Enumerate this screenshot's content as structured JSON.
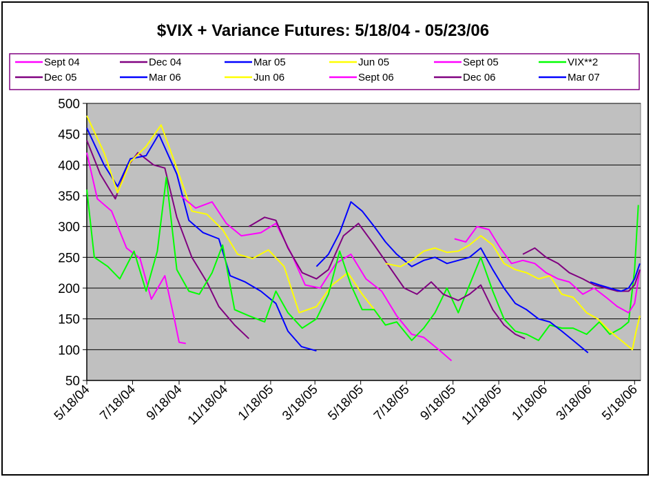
{
  "chart_data": {
    "type": "line",
    "title": "$VIX + Variance Futures: 5/18/04 - 05/23/06",
    "xlabel": "",
    "ylabel": "",
    "x_range": [
      "2004-05-18",
      "2006-05-26"
    ],
    "x_tick_labels": [
      "5/18/04",
      "7/18/04",
      "9/18/04",
      "11/18/04",
      "1/18/05",
      "3/18/05",
      "5/18/05",
      "7/18/05",
      "9/18/05",
      "11/18/05",
      "1/18/06",
      "3/18/06",
      "5/18/06"
    ],
    "x_tick_dates": [
      "2004-05-18",
      "2004-07-18",
      "2004-09-18",
      "2004-11-18",
      "2005-01-18",
      "2005-03-18",
      "2005-05-18",
      "2005-07-18",
      "2005-09-18",
      "2005-11-18",
      "2006-01-18",
      "2006-03-18",
      "2006-05-18"
    ],
    "ylim": [
      50,
      500
    ],
    "y_ticks": [
      50,
      100,
      150,
      200,
      250,
      300,
      350,
      400,
      450,
      500
    ],
    "grid": "horizontal",
    "plot_background": "#c0c0c0",
    "legend_position": "top",
    "series": [
      {
        "name": "Sept 04",
        "color": "#ff00ff",
        "points": [
          [
            "2004-05-18",
            420
          ],
          [
            "2004-06-01",
            345
          ],
          [
            "2004-06-20",
            325
          ],
          [
            "2004-07-10",
            265
          ],
          [
            "2004-07-28",
            248
          ],
          [
            "2004-08-12",
            182
          ],
          [
            "2004-08-30",
            220
          ],
          [
            "2004-09-12",
            148
          ],
          [
            "2004-09-18",
            112
          ],
          [
            "2004-09-27",
            110
          ]
        ]
      },
      {
        "name": "Dec 04",
        "color": "#800080",
        "points": [
          [
            "2004-05-18",
            440
          ],
          [
            "2004-06-05",
            385
          ],
          [
            "2004-06-25",
            345
          ],
          [
            "2004-07-10",
            395
          ],
          [
            "2004-07-25",
            420
          ],
          [
            "2004-08-15",
            400
          ],
          [
            "2004-08-30",
            395
          ],
          [
            "2004-09-15",
            315
          ],
          [
            "2004-10-05",
            250
          ],
          [
            "2004-10-25",
            210
          ],
          [
            "2004-11-10",
            170
          ],
          [
            "2004-12-01",
            140
          ],
          [
            "2004-12-20",
            118
          ]
        ]
      },
      {
        "name": "Mar 05",
        "color": "#0000ff",
        "points": [
          [
            "2004-05-18",
            460
          ],
          [
            "2004-06-10",
            400
          ],
          [
            "2004-06-28",
            365
          ],
          [
            "2004-07-15",
            410
          ],
          [
            "2004-08-05",
            415
          ],
          [
            "2004-08-22",
            450
          ],
          [
            "2004-09-15",
            385
          ],
          [
            "2004-10-01",
            310
          ],
          [
            "2004-10-20",
            290
          ],
          [
            "2004-11-10",
            280
          ],
          [
            "2004-11-25",
            220
          ],
          [
            "2004-12-15",
            210
          ],
          [
            "2005-01-05",
            195
          ],
          [
            "2005-01-25",
            175
          ],
          [
            "2005-02-10",
            130
          ],
          [
            "2005-02-28",
            105
          ],
          [
            "2005-03-20",
            98
          ]
        ]
      },
      {
        "name": "Jun 05",
        "color": "#ffff00",
        "points": [
          [
            "2004-05-18",
            480
          ],
          [
            "2004-06-10",
            420
          ],
          [
            "2004-06-28",
            355
          ],
          [
            "2004-07-15",
            405
          ],
          [
            "2004-08-05",
            430
          ],
          [
            "2004-08-25",
            465
          ],
          [
            "2004-09-15",
            395
          ],
          [
            "2004-10-05",
            325
          ],
          [
            "2004-10-25",
            320
          ],
          [
            "2004-11-15",
            295
          ],
          [
            "2004-12-05",
            255
          ],
          [
            "2004-12-25",
            248
          ],
          [
            "2005-01-15",
            262
          ],
          [
            "2005-02-05",
            235
          ],
          [
            "2005-02-25",
            160
          ],
          [
            "2005-03-20",
            170
          ],
          [
            "2005-04-10",
            205
          ],
          [
            "2005-05-01",
            225
          ],
          [
            "2005-05-20",
            190
          ],
          [
            "2005-06-05",
            165
          ],
          [
            "2005-06-17",
            145
          ]
        ]
      },
      {
        "name": "Sept 05",
        "color": "#ff00ff",
        "points": [
          [
            "2004-09-20",
            350
          ],
          [
            "2004-10-10",
            330
          ],
          [
            "2004-11-01",
            340
          ],
          [
            "2004-11-20",
            305
          ],
          [
            "2004-12-10",
            285
          ],
          [
            "2005-01-05",
            290
          ],
          [
            "2005-01-25",
            305
          ],
          [
            "2005-02-15",
            255
          ],
          [
            "2005-03-05",
            205
          ],
          [
            "2005-03-25",
            200
          ],
          [
            "2005-04-15",
            240
          ],
          [
            "2005-05-05",
            255
          ],
          [
            "2005-05-25",
            215
          ],
          [
            "2005-06-15",
            195
          ],
          [
            "2005-07-05",
            155
          ],
          [
            "2005-07-25",
            125
          ],
          [
            "2005-08-10",
            120
          ],
          [
            "2005-08-30",
            100
          ],
          [
            "2005-09-16",
            82
          ]
        ]
      },
      {
        "name": "VIX**2",
        "color": "#00ff00",
        "points": [
          [
            "2004-05-18",
            360
          ],
          [
            "2004-05-28",
            250
          ],
          [
            "2004-06-15",
            235
          ],
          [
            "2004-07-01",
            215
          ],
          [
            "2004-07-20",
            260
          ],
          [
            "2004-08-05",
            195
          ],
          [
            "2004-08-20",
            260
          ],
          [
            "2004-09-01",
            380
          ],
          [
            "2004-09-15",
            230
          ],
          [
            "2004-10-01",
            195
          ],
          [
            "2004-10-15",
            190
          ],
          [
            "2004-11-01",
            225
          ],
          [
            "2004-11-15",
            270
          ],
          [
            "2004-12-01",
            165
          ],
          [
            "2004-12-20",
            155
          ],
          [
            "2005-01-10",
            145
          ],
          [
            "2005-01-25",
            195
          ],
          [
            "2005-02-10",
            160
          ],
          [
            "2005-03-01",
            135
          ],
          [
            "2005-03-20",
            150
          ],
          [
            "2005-04-05",
            190
          ],
          [
            "2005-04-20",
            260
          ],
          [
            "2005-05-05",
            205
          ],
          [
            "2005-05-20",
            165
          ],
          [
            "2005-06-05",
            165
          ],
          [
            "2005-06-20",
            140
          ],
          [
            "2005-07-05",
            145
          ],
          [
            "2005-07-25",
            115
          ],
          [
            "2005-08-10",
            135
          ],
          [
            "2005-08-25",
            160
          ],
          [
            "2005-09-10",
            200
          ],
          [
            "2005-09-25",
            160
          ],
          [
            "2005-10-10",
            205
          ],
          [
            "2005-10-25",
            250
          ],
          [
            "2005-11-10",
            195
          ],
          [
            "2005-11-25",
            150
          ],
          [
            "2005-12-10",
            130
          ],
          [
            "2005-12-25",
            125
          ],
          [
            "2006-01-10",
            115
          ],
          [
            "2006-01-25",
            140
          ],
          [
            "2006-02-10",
            135
          ],
          [
            "2006-02-25",
            135
          ],
          [
            "2006-03-15",
            125
          ],
          [
            "2006-04-01",
            145
          ],
          [
            "2006-04-15",
            125
          ],
          [
            "2006-04-30",
            135
          ],
          [
            "2006-05-10",
            145
          ],
          [
            "2006-05-18",
            230
          ],
          [
            "2006-05-23",
            335
          ]
        ]
      },
      {
        "name": "Dec 05",
        "color": "#800080",
        "points": [
          [
            "2004-12-20",
            300
          ],
          [
            "2005-01-10",
            315
          ],
          [
            "2005-01-25",
            310
          ],
          [
            "2005-02-10",
            265
          ],
          [
            "2005-03-01",
            225
          ],
          [
            "2005-03-20",
            215
          ],
          [
            "2005-04-05",
            230
          ],
          [
            "2005-04-25",
            285
          ],
          [
            "2005-05-15",
            305
          ],
          [
            "2005-06-05",
            270
          ],
          [
            "2005-06-25",
            235
          ],
          [
            "2005-07-15",
            200
          ],
          [
            "2005-08-01",
            190
          ],
          [
            "2005-08-20",
            210
          ],
          [
            "2005-09-05",
            190
          ],
          [
            "2005-09-25",
            180
          ],
          [
            "2005-10-10",
            190
          ],
          [
            "2005-10-25",
            205
          ],
          [
            "2005-11-10",
            165
          ],
          [
            "2005-11-25",
            140
          ],
          [
            "2005-12-10",
            125
          ],
          [
            "2005-12-23",
            118
          ]
        ]
      },
      {
        "name": "Mar 06",
        "color": "#0000ff",
        "points": [
          [
            "2005-03-20",
            235
          ],
          [
            "2005-04-05",
            255
          ],
          [
            "2005-04-20",
            290
          ],
          [
            "2005-05-05",
            340
          ],
          [
            "2005-05-20",
            325
          ],
          [
            "2005-06-05",
            300
          ],
          [
            "2005-06-20",
            275
          ],
          [
            "2005-07-05",
            255
          ],
          [
            "2005-07-25",
            235
          ],
          [
            "2005-08-10",
            245
          ],
          [
            "2005-08-25",
            250
          ],
          [
            "2005-09-10",
            240
          ],
          [
            "2005-09-25",
            245
          ],
          [
            "2005-10-10",
            250
          ],
          [
            "2005-10-25",
            265
          ],
          [
            "2005-11-10",
            230
          ],
          [
            "2005-11-25",
            200
          ],
          [
            "2005-12-10",
            175
          ],
          [
            "2005-12-25",
            165
          ],
          [
            "2006-01-10",
            150
          ],
          [
            "2006-01-25",
            145
          ],
          [
            "2006-02-10",
            130
          ],
          [
            "2006-02-25",
            115
          ],
          [
            "2006-03-17",
            95
          ]
        ]
      },
      {
        "name": "Jun 06",
        "color": "#ffff00",
        "points": [
          [
            "2005-06-20",
            240
          ],
          [
            "2005-07-10",
            235
          ],
          [
            "2005-07-25",
            245
          ],
          [
            "2005-08-10",
            260
          ],
          [
            "2005-08-25",
            265
          ],
          [
            "2005-09-10",
            258
          ],
          [
            "2005-09-25",
            260
          ],
          [
            "2005-10-10",
            270
          ],
          [
            "2005-10-25",
            285
          ],
          [
            "2005-11-10",
            270
          ],
          [
            "2005-11-25",
            240
          ],
          [
            "2005-12-10",
            230
          ],
          [
            "2005-12-25",
            225
          ],
          [
            "2006-01-10",
            215
          ],
          [
            "2006-01-25",
            220
          ],
          [
            "2006-02-10",
            190
          ],
          [
            "2006-02-25",
            185
          ],
          [
            "2006-03-15",
            160
          ],
          [
            "2006-03-30",
            150
          ],
          [
            "2006-04-15",
            130
          ],
          [
            "2006-04-30",
            115
          ],
          [
            "2006-05-15",
            100
          ],
          [
            "2006-05-20",
            130
          ],
          [
            "2006-05-25",
            155
          ]
        ]
      },
      {
        "name": "Sept 06",
        "color": "#ff00ff",
        "points": [
          [
            "2005-09-20",
            280
          ],
          [
            "2005-10-05",
            275
          ],
          [
            "2005-10-20",
            300
          ],
          [
            "2005-11-05",
            295
          ],
          [
            "2005-11-20",
            265
          ],
          [
            "2005-12-05",
            240
          ],
          [
            "2005-12-20",
            245
          ],
          [
            "2006-01-05",
            240
          ],
          [
            "2006-01-20",
            225
          ],
          [
            "2006-02-05",
            215
          ],
          [
            "2006-02-20",
            210
          ],
          [
            "2006-03-10",
            190
          ],
          [
            "2006-03-25",
            200
          ],
          [
            "2006-04-10",
            185
          ],
          [
            "2006-04-25",
            170
          ],
          [
            "2006-05-10",
            160
          ],
          [
            "2006-05-18",
            175
          ],
          [
            "2006-05-25",
            230
          ]
        ]
      },
      {
        "name": "Dec 06",
        "color": "#800080",
        "points": [
          [
            "2005-12-20",
            255
          ],
          [
            "2006-01-05",
            265
          ],
          [
            "2006-01-20",
            250
          ],
          [
            "2006-02-05",
            240
          ],
          [
            "2006-02-20",
            225
          ],
          [
            "2006-03-10",
            215
          ],
          [
            "2006-03-25",
            205
          ],
          [
            "2006-04-10",
            200
          ],
          [
            "2006-04-25",
            195
          ],
          [
            "2006-05-10",
            195
          ],
          [
            "2006-05-18",
            205
          ],
          [
            "2006-05-25",
            230
          ]
        ]
      },
      {
        "name": "Mar 07",
        "color": "#0000ff",
        "points": [
          [
            "2006-03-20",
            210
          ],
          [
            "2006-04-01",
            205
          ],
          [
            "2006-04-15",
            200
          ],
          [
            "2006-04-30",
            195
          ],
          [
            "2006-05-10",
            200
          ],
          [
            "2006-05-18",
            215
          ],
          [
            "2006-05-25",
            240
          ]
        ]
      }
    ]
  }
}
